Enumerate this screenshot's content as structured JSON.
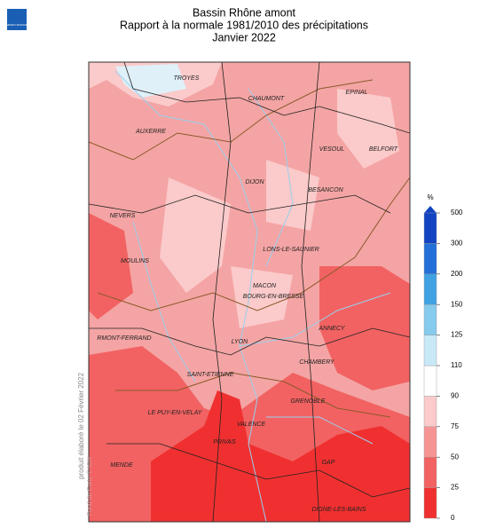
{
  "header": {
    "logo": "METEO FRANCE",
    "title": [
      "Bassin Rhône amont",
      "Rapport à la normale 1981/2010 des précipitations",
      "Janvier 2022"
    ]
  },
  "map": {
    "cities": [
      "TROYES",
      "CHAUMONT",
      "EPINAL",
      "AUXERRE",
      "VESOUL",
      "BELFORT",
      "DIJON",
      "BESANCON",
      "NEVERS",
      "LONS-LE-SAUNIER",
      "MOULINS",
      "MACON",
      "BOURG-EN-BRESSE",
      "ANNECY",
      "RMONT-FERRAND",
      "LYON",
      "CHAMBERY",
      "SAINT-ETIENNE",
      "GRENOBLE",
      "LE PUY-EN-VELAY",
      "VALENCE",
      "PRIVAS",
      "GAP",
      "MENDE",
      "DIGNE-LES-BAINS"
    ],
    "side_note": "produit élaboré le 02 Février 2022",
    "credit": "Fond de Carte © IGN"
  },
  "legend": {
    "unit": "%",
    "bounds": [
      0,
      25,
      50,
      75,
      90,
      110,
      125,
      150,
      200,
      300,
      500
    ],
    "colors": [
      "#f03030",
      "#f26262",
      "#f69494",
      "#fbcaca",
      "#ffffff",
      "#c9e8f8",
      "#86caee",
      "#40a2e2",
      "#2270d8",
      "#1244c2"
    ]
  }
}
